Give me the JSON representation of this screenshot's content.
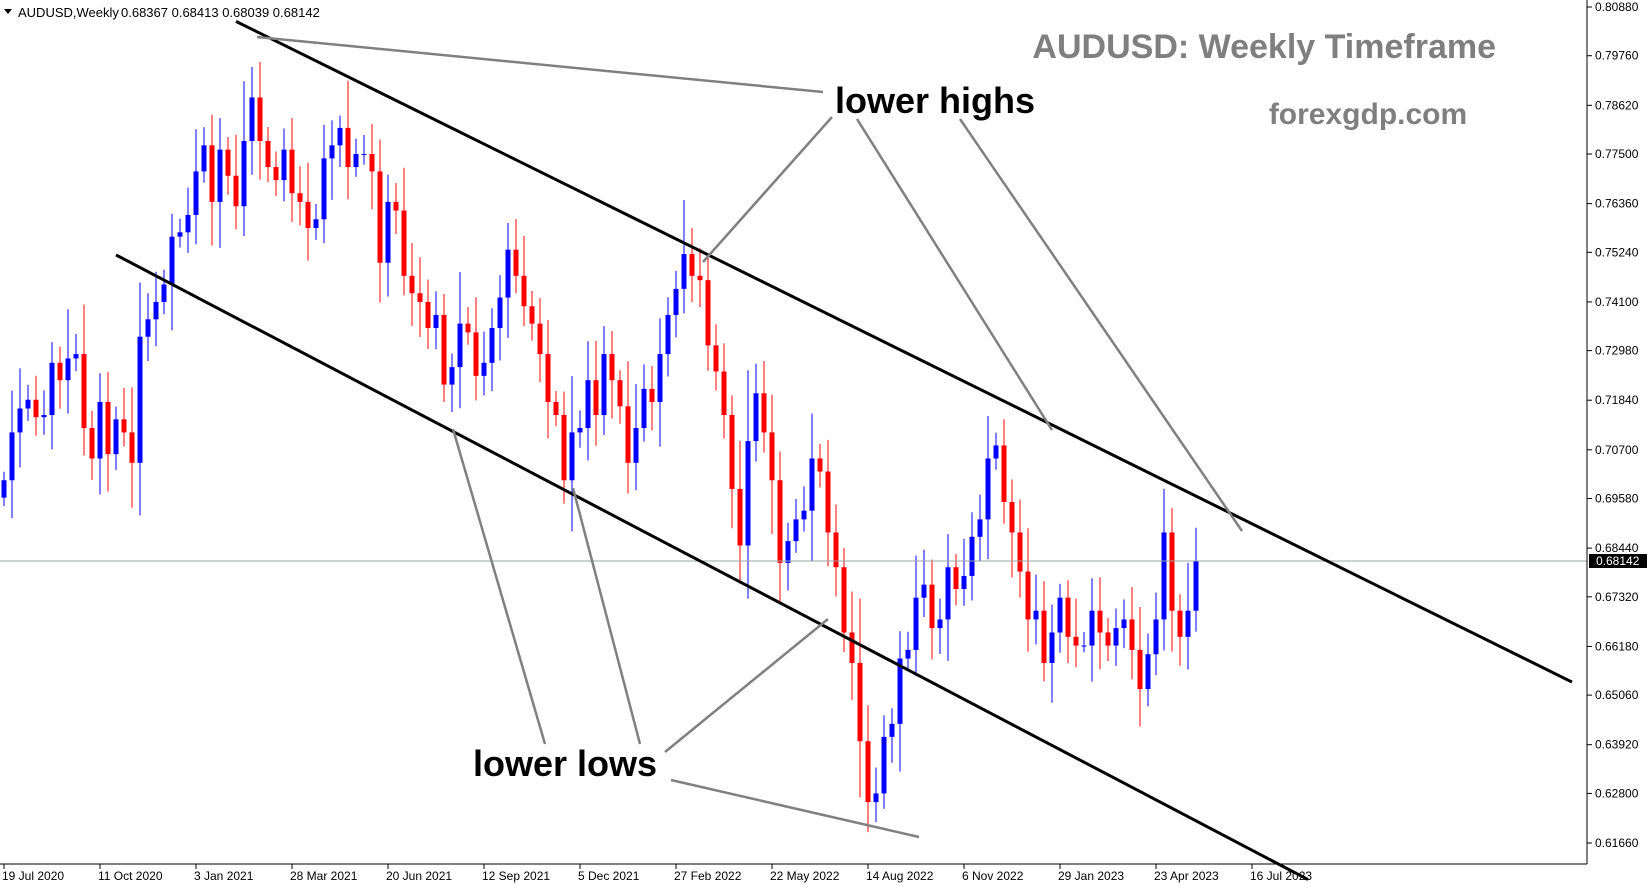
{
  "header": {
    "symbol": "AUDUSD,Weekly",
    "ohlc": "0.68367 0.68413 0.68039 0.68142"
  },
  "title": "AUDUSD: Weekly Timeframe",
  "subtitle": "forexgdp.com",
  "annotations": {
    "highs_label": "lower highs",
    "lows_label": "lower lows"
  },
  "current_price_label": "0.68142",
  "colors": {
    "bull": "#0000ff",
    "bear": "#ff0000",
    "channel": "#000000",
    "pointer": "#808080",
    "watermark": "#7f7f7f",
    "background": "#ffffff"
  },
  "chart_data": {
    "type": "candlestick",
    "timeframe": "Weekly",
    "symbol": "AUDUSD",
    "y_ticks": [
      0.8088,
      0.7976,
      0.7862,
      0.775,
      0.7636,
      0.7524,
      0.741,
      0.7298,
      0.7184,
      0.707,
      0.6958,
      0.6844,
      0.6732,
      0.6618,
      0.6506,
      0.6392,
      0.628,
      0.6166
    ],
    "ylim": [
      0.6104,
      0.8108
    ],
    "x_ticks": [
      {
        "label": "19 Jul 2020",
        "index": 0
      },
      {
        "label": "11 Oct 2020",
        "index": 12
      },
      {
        "label": "3 Jan 2021",
        "index": 24
      },
      {
        "label": "28 Mar 2021",
        "index": 36
      },
      {
        "label": "20 Jun 2021",
        "index": 48
      },
      {
        "label": "12 Sep 2021",
        "index": 60
      },
      {
        "label": "5 Dec 2021",
        "index": 72
      },
      {
        "label": "27 Feb 2022",
        "index": 84
      },
      {
        "label": "22 May 2022",
        "index": 96
      },
      {
        "label": "14 Aug 2022",
        "index": 108
      },
      {
        "label": "6 Nov 2022",
        "index": 120
      },
      {
        "label": "29 Jan 2023",
        "index": 132
      },
      {
        "label": "23 Apr 2023",
        "index": 144
      },
      {
        "label": "16 Jul 2023",
        "index": 156
      }
    ],
    "current_price": 0.68142,
    "channel": {
      "upper": {
        "from": {
          "index": 29,
          "price": 0.8055
        },
        "to": {
          "index": 196,
          "price": 0.6536
        }
      },
      "lower": {
        "from": {
          "index": 14,
          "price": 0.7518
        },
        "to": {
          "index": 163,
          "price": 0.6082
        }
      }
    },
    "closes": [
      0.7,
      0.711,
      0.7165,
      0.7185,
      0.7145,
      0.715,
      0.727,
      0.723,
      0.728,
      0.729,
      0.712,
      0.705,
      0.718,
      0.706,
      0.714,
      0.711,
      0.704,
      0.733,
      0.737,
      0.741,
      0.745,
      0.756,
      0.757,
      0.761,
      0.771,
      0.777,
      0.764,
      0.776,
      0.77,
      0.763,
      0.778,
      0.788,
      0.778,
      0.772,
      0.769,
      0.776,
      0.766,
      0.764,
      0.758,
      0.76,
      0.774,
      0.777,
      0.781,
      0.772,
      0.775,
      0.775,
      0.771,
      0.75,
      0.764,
      0.762,
      0.747,
      0.743,
      0.741,
      0.735,
      0.738,
      0.722,
      0.726,
      0.736,
      0.734,
      0.724,
      0.727,
      0.735,
      0.742,
      0.753,
      0.747,
      0.74,
      0.736,
      0.729,
      0.718,
      0.715,
      0.7,
      0.711,
      0.712,
      0.723,
      0.715,
      0.729,
      0.723,
      0.717,
      0.704,
      0.712,
      0.721,
      0.718,
      0.729,
      0.738,
      0.744,
      0.752,
      0.747,
      0.746,
      0.731,
      0.725,
      0.715,
      0.698,
      0.685,
      0.709,
      0.72,
      0.711,
      0.7,
      0.681,
      0.686,
      0.691,
      0.693,
      0.705,
      0.702,
      0.688,
      0.68,
      0.665,
      0.658,
      0.64,
      0.626,
      0.628,
      0.641,
      0.644,
      0.659,
      0.661,
      0.673,
      0.676,
      0.666,
      0.668,
      0.68,
      0.675,
      0.678,
      0.687,
      0.691,
      0.705,
      0.708,
      0.695,
      0.688,
      0.679,
      0.668,
      0.67,
      0.658,
      0.665,
      0.673,
      0.664,
      0.662,
      0.662,
      0.67,
      0.665,
      0.662,
      0.666,
      0.668,
      0.661,
      0.652,
      0.66,
      0.668,
      0.688,
      0.67,
      0.664,
      0.67,
      0.6814
    ],
    "opens_note": "each candle opens at the previous close"
  }
}
